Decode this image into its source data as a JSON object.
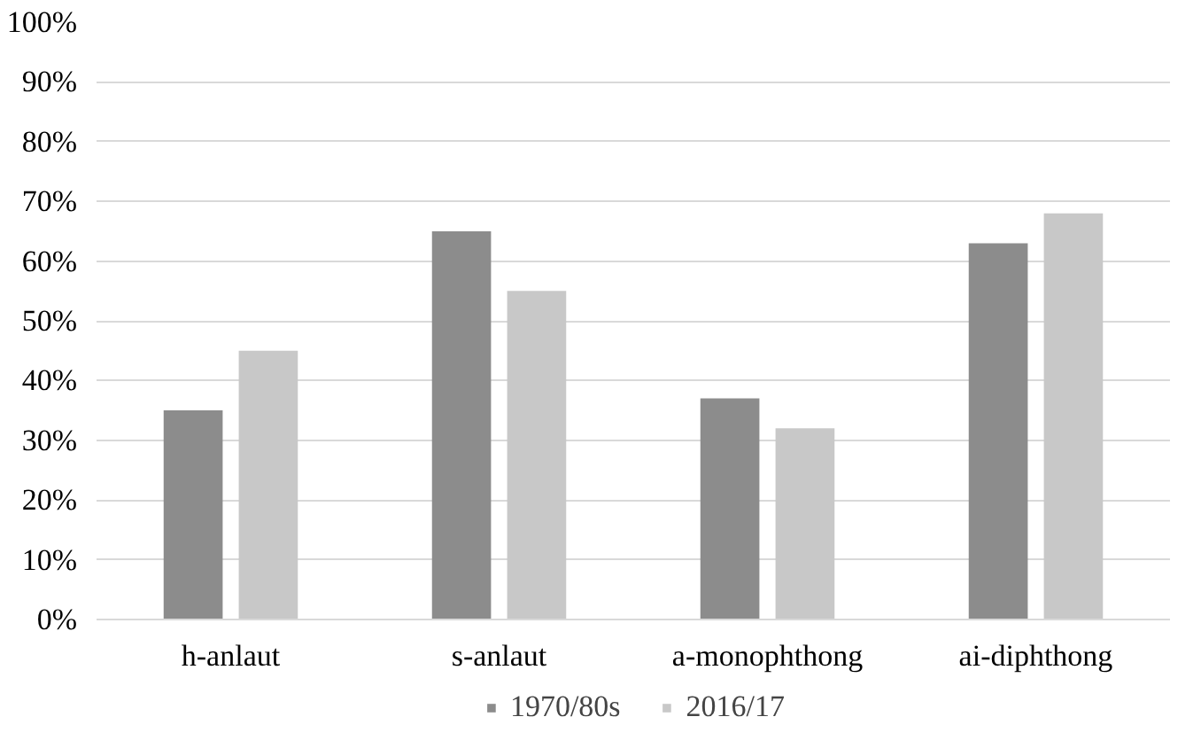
{
  "chart_data": {
    "type": "bar",
    "categories": [
      "h-anlaut",
      "s-anlaut",
      "a-monophthong",
      "ai-diphthong"
    ],
    "series": [
      {
        "name": "1970/80s",
        "color": "#8c8c8c",
        "values": [
          35,
          65,
          37,
          63
        ]
      },
      {
        "name": "2016/17",
        "color": "#c8c8c8",
        "values": [
          45,
          55,
          32,
          68
        ]
      }
    ],
    "ylim": [
      0,
      100
    ],
    "yticks": [
      {
        "value": 0,
        "label": "0%"
      },
      {
        "value": 10,
        "label": "10%"
      },
      {
        "value": 20,
        "label": "20%"
      },
      {
        "value": 30,
        "label": "30%"
      },
      {
        "value": 40,
        "label": "40%"
      },
      {
        "value": 50,
        "label": "50%"
      },
      {
        "value": 60,
        "label": "60%"
      },
      {
        "value": 70,
        "label": "70%"
      },
      {
        "value": 80,
        "label": "80%"
      },
      {
        "value": 90,
        "label": "90%"
      },
      {
        "value": 100,
        "label": "100%"
      }
    ],
    "grid": "y",
    "legend": "bottom"
  }
}
